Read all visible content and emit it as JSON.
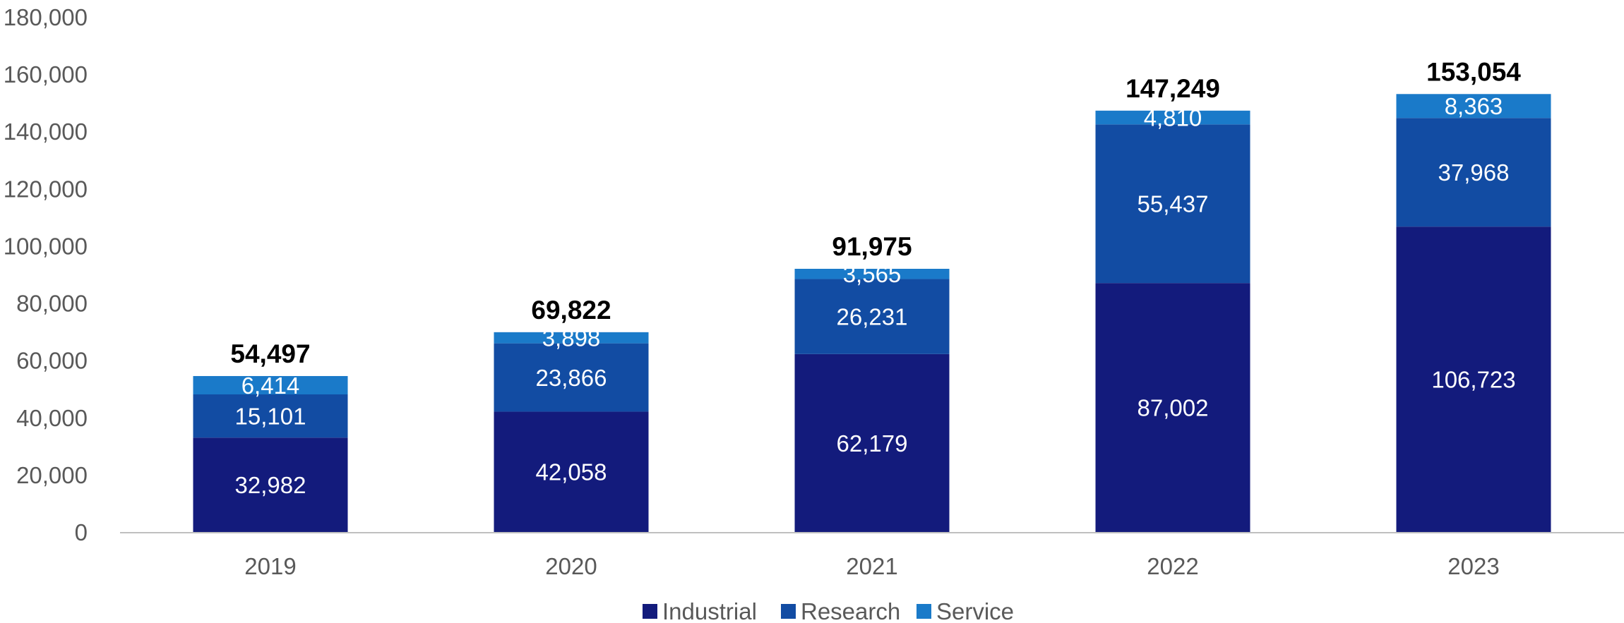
{
  "chart_data": {
    "type": "bar",
    "stacked": true,
    "categories": [
      "2019",
      "2020",
      "2021",
      "2022",
      "2023"
    ],
    "series": [
      {
        "name": "Industrial",
        "color": "#131b7c",
        "values": [
          32982,
          42058,
          62179,
          87002,
          106723
        ]
      },
      {
        "name": "Research",
        "color": "#124ca3",
        "values": [
          15101,
          23866,
          26231,
          55437,
          37968
        ]
      },
      {
        "name": "Service",
        "color": "#1a7ac9",
        "values": [
          6414,
          3898,
          3565,
          4810,
          8363
        ]
      }
    ],
    "totals": [
      54497,
      69822,
      91975,
      147249,
      153054
    ],
    "value_labels": [
      [
        "32,982",
        "42,058",
        "62,179",
        "87,002",
        "106,723"
      ],
      [
        "15,101",
        "23,866",
        "26,231",
        "55,437",
        "37,968"
      ],
      [
        "6,414",
        "3,898",
        "3,565",
        "4,810",
        "8,363"
      ]
    ],
    "total_labels": [
      "54,497",
      "69,822",
      "91,975",
      "147,249",
      "153,054"
    ],
    "y_ticks": [
      "0",
      "20,000",
      "40,000",
      "60,000",
      "80,000",
      "100,000",
      "120,000",
      "140,000",
      "160,000",
      "180,000"
    ],
    "ylim": [
      0,
      180000
    ],
    "grid": false,
    "legend_position": "bottom-center",
    "title": "",
    "xlabel": "",
    "ylabel": ""
  }
}
